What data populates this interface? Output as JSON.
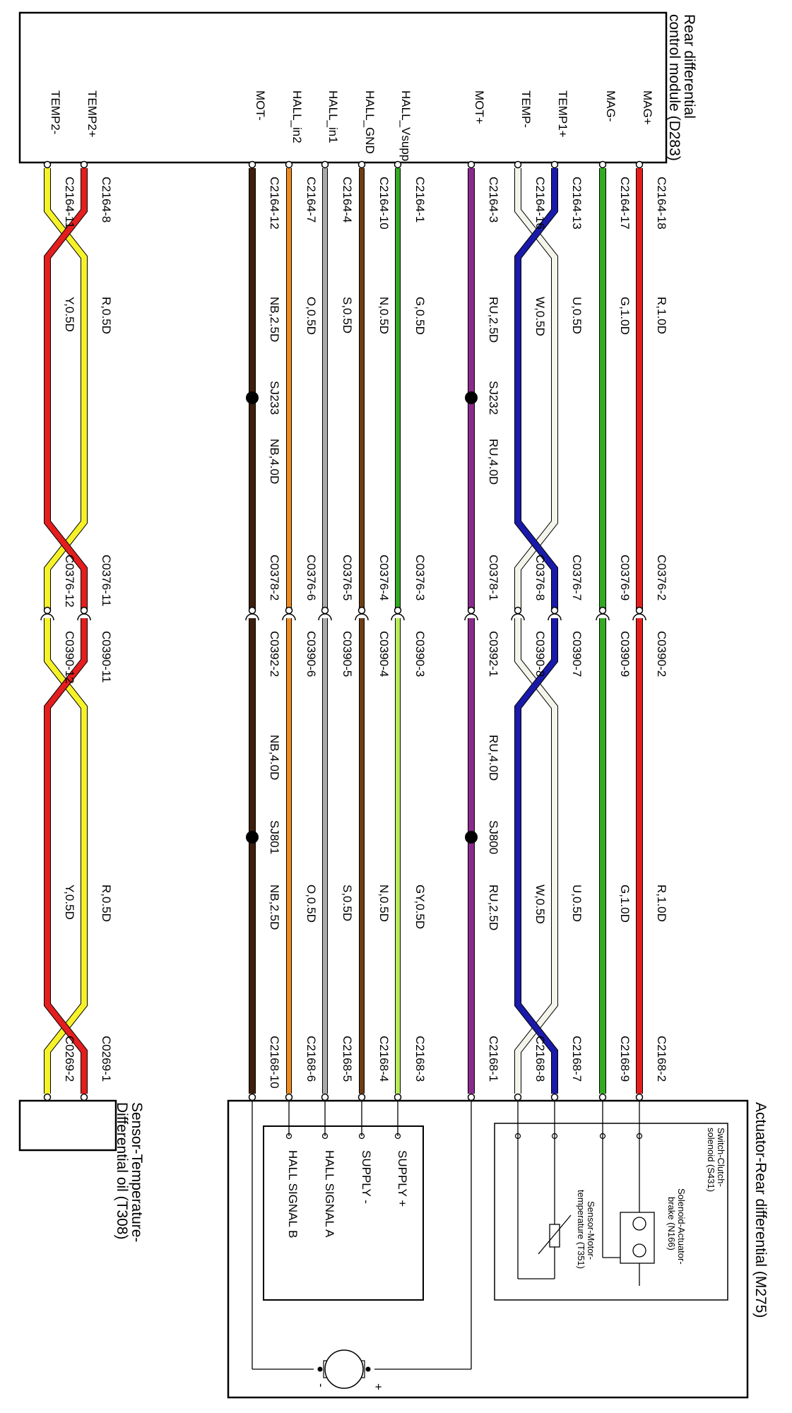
{
  "modules": {
    "d283": {
      "title": "Rear differential control module (D283)",
      "line1": "Rear differential",
      "line2": "control module (D283)"
    },
    "m275": {
      "title": "Actuator-Rear differential (M275)"
    },
    "t308": {
      "line1": "Sensor-Temperature-",
      "line2": "Differential oil (T308)"
    }
  },
  "colors": {
    "red": "#e41e1e",
    "green": "#33aa22",
    "white": "#f4f4ea",
    "blue": "#1a1aaa",
    "purple": "#8a2a8a",
    "brown": "#6e3d14",
    "grey": "#aaaaaa",
    "orange": "#f18a1c",
    "darkbrown": "#3d1f0c",
    "yellow": "#f6f22a",
    "lightgreen": "#b7ec58",
    "outline": "#000000"
  },
  "pins": [
    {
      "name": "MAG+",
      "conn": "C2164-18",
      "w1": "R,1.0D",
      "ca": "C0376-2",
      "cb": "C0390-2",
      "w2": "R,1.0D",
      "end": "C2168-2"
    },
    {
      "name": "MAG-",
      "conn": "C2164-17",
      "w1": "G,1.0D",
      "ca": "C0376-9",
      "cb": "C0390-9",
      "w2": "G,1.0D",
      "end": "C2168-9"
    },
    {
      "name": "TEMP1+",
      "conn": "C2164-13",
      "w1": "U,0.5D",
      "ca": "C0376-7",
      "cb": "C0390-7",
      "w2": "U,0.5D",
      "end": "C2168-7"
    },
    {
      "name": "TEMP-",
      "conn": "C2164-16",
      "w1": "W,0.5D",
      "ca": "C0376-8",
      "cb": "C0390-8",
      "w2": "W,0.5D",
      "end": "C2168-8"
    },
    {
      "name": "MOT+",
      "conn": "C2164-3",
      "w1": "RU,2.5D",
      "ca": "C0378-1",
      "cb": "C0392-1",
      "w2": "RU,2.5D",
      "end": "C2168-1"
    },
    {
      "name": "HALL_Vsupp",
      "conn": "C2164-1",
      "w1": "G,0.5D",
      "ca": "C0376-3",
      "cb": "C0390-3",
      "w2": "GY,0.5D",
      "end": "C2168-3"
    },
    {
      "name": "HALL_GND",
      "conn": "C2164-10",
      "w1": "N,0.5D",
      "ca": "C0376-4",
      "cb": "C0390-4",
      "w2": "N,0.5D",
      "end": "C2168-4"
    },
    {
      "name": "HALL_in1",
      "conn": "C2164-4",
      "w1": "S,0.5D",
      "ca": "C0376-5",
      "cb": "C0390-5",
      "w2": "S,0.5D",
      "end": "C2168-5"
    },
    {
      "name": "HALL_in2",
      "conn": "C2164-7",
      "w1": "O,0.5D",
      "ca": "C0376-6",
      "cb": "C0390-6",
      "w2": "O,0.5D",
      "end": "C2168-6"
    },
    {
      "name": "MOT-",
      "conn": "C2164-12",
      "w1": "NB,2.5D",
      "ca": "C0378-2",
      "cb": "C0392-2",
      "w2": "NB,2.5D",
      "end": "C2168-10"
    },
    {
      "name": "TEMP2+",
      "conn": "C2164-8",
      "w1": "R,0.5D",
      "ca": "C0376-11",
      "cb": "C0390-11",
      "w2": "R,0.5D",
      "end": "C0269-1"
    },
    {
      "name": "TEMP2-",
      "conn": "C2164-11",
      "w1": "Y,0.5D",
      "ca": "C0376-12",
      "cb": "C0390-12",
      "w2": "Y,0.5D",
      "end": "C0269-2"
    }
  ],
  "splices": [
    {
      "name": "SJ232",
      "wire": "RU,4.0D"
    },
    {
      "name": "SJ233",
      "wire": "NB,4.0D"
    },
    {
      "name": "SJ800",
      "wire": "RU,4.0D"
    },
    {
      "name": "SJ801",
      "wire": "NB,4.0D"
    }
  ],
  "internal": {
    "switch_clutch": "Switch-Clutch- solenoid (S431)",
    "switch_l1": "Switch-Clutch-",
    "switch_l2": "solenoid (S431)",
    "solenoid_l1": "Solenoid-Actuator-",
    "solenoid_l2": "brake (N166)",
    "motor_temp_l1": "Sensor-Motor-",
    "motor_temp_l2": "temperature (T351)",
    "supply_plus": "SUPPLY +",
    "supply_minus": "SUPPLY -",
    "hall_a": "HALL SIGNAL A",
    "hall_b": "HALL SIGNAL B",
    "motor_plus": "+",
    "motor_minus": "-"
  }
}
